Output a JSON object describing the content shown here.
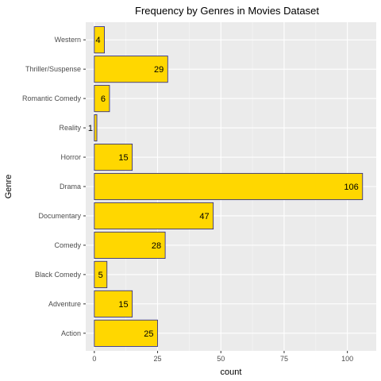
{
  "chart_data": {
    "type": "bar",
    "orientation": "horizontal",
    "title": "Frequency by Genres in Movies Dataset",
    "xlabel": "count",
    "ylabel": "Genre",
    "categories": [
      "Action",
      "Adventure",
      "Black Comedy",
      "Comedy",
      "Documentary",
      "Drama",
      "Horror",
      "Reality",
      "Romantic Comedy",
      "Thriller/Suspense",
      "Western"
    ],
    "values": [
      25,
      15,
      5,
      28,
      47,
      106,
      15,
      1,
      6,
      29,
      4
    ],
    "xticks": [
      0,
      25,
      50,
      75,
      100
    ],
    "xlim": [
      -3.4,
      111.4
    ],
    "grid": true,
    "legend": "none",
    "colors": {
      "bar_fill": "#FFD700",
      "bar_stroke": "#1F1F8F",
      "panel_bg": "#EBEBEB",
      "grid_major": "#FFFFFF"
    }
  }
}
